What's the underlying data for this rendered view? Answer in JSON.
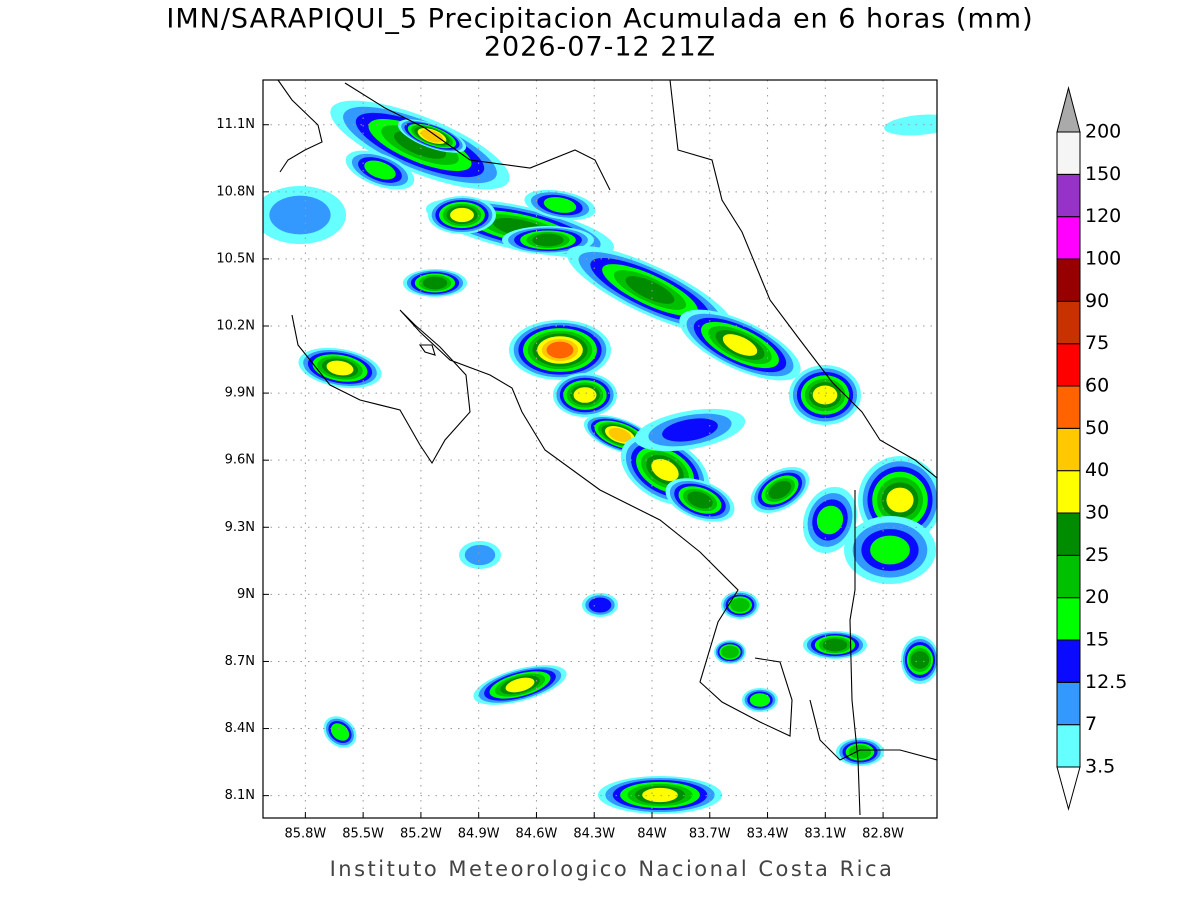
{
  "title": "IMN/SARAPIQUI_5 Precipitacion Acumulada en 6 horas (mm)",
  "subtitle": "2026-07-12 21Z",
  "map": {
    "xlim": [
      -86.02,
      -82.52
    ],
    "ylim": [
      8.0,
      11.3
    ],
    "grid": true,
    "lon_ticks": [
      {
        "value": -85.8,
        "label": "85.8W"
      },
      {
        "value": -85.5,
        "label": "85.5W"
      },
      {
        "value": -85.2,
        "label": "85.2W"
      },
      {
        "value": -84.9,
        "label": "84.9W"
      },
      {
        "value": -84.6,
        "label": "84.6W"
      },
      {
        "value": -84.3,
        "label": "84.3W"
      },
      {
        "value": -84.0,
        "label": "84W"
      },
      {
        "value": -83.7,
        "label": "83.7W"
      },
      {
        "value": -83.4,
        "label": "83.4W"
      },
      {
        "value": -83.1,
        "label": "83.1W"
      },
      {
        "value": -82.8,
        "label": "82.8W"
      }
    ],
    "lat_ticks": [
      {
        "value": 11.1,
        "label": "11.1N"
      },
      {
        "value": 10.8,
        "label": "10.8N"
      },
      {
        "value": 10.5,
        "label": "10.5N"
      },
      {
        "value": 10.2,
        "label": "10.2N"
      },
      {
        "value": 9.9,
        "label": "9.9N"
      },
      {
        "value": 9.6,
        "label": "9.6N"
      },
      {
        "value": 9.3,
        "label": "9.3N"
      },
      {
        "value": 9.0,
        "label": "9N"
      },
      {
        "value": 8.7,
        "label": "8.7N"
      },
      {
        "value": 8.4,
        "label": "8.4N"
      },
      {
        "value": 8.1,
        "label": "8.1N"
      }
    ]
  },
  "colorbar": {
    "levels": [
      3.5,
      7,
      12.5,
      15,
      20,
      25,
      30,
      40,
      50,
      60,
      75,
      90,
      100,
      120,
      150,
      200
    ],
    "colors": [
      "#ffffff",
      "#66ffff",
      "#3399ff",
      "#0a0aff",
      "#00ff00",
      "#00c000",
      "#008c00",
      "#ffff00",
      "#ffc800",
      "#ff6400",
      "#ff0000",
      "#c83200",
      "#960000",
      "#ff00ff",
      "#9632c8",
      "#f5f5f5",
      "#aaaaaa"
    ]
  },
  "credit": "Instituto Meteorologico Nacional Costa Rica"
}
